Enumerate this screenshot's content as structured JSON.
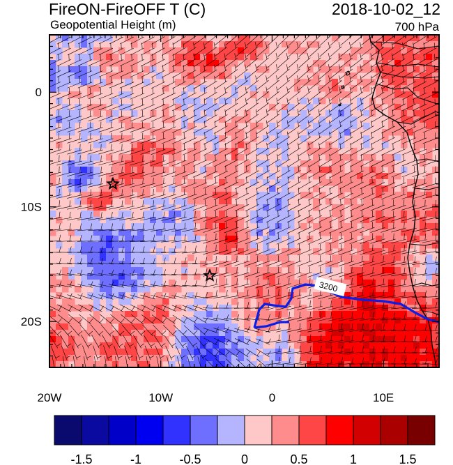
{
  "header": {
    "title": "FireON-FireOFF T (C)",
    "subtitle": "Geopotential Height (m)",
    "datetime": "2018-10-02_12",
    "level": "700 hPa"
  },
  "map": {
    "x_ticks": [
      "20W",
      "10W",
      "0",
      "10E"
    ],
    "y_ticks": [
      "0",
      "10S",
      "20S"
    ],
    "contour_label": "3200",
    "markers": [
      {
        "name": "star-marker-north",
        "lon": -14.3,
        "lat": -8.0
      },
      {
        "name": "star-marker-south",
        "lon": -5.6,
        "lat": -16.0
      }
    ],
    "lon_range": [
      -20,
      15
    ],
    "lat_range": [
      -24,
      5
    ]
  },
  "colorbar": {
    "labels": [
      "-1.5",
      "-1",
      "-0.5",
      "0",
      "0.5",
      "1",
      "1.5"
    ],
    "colors": [
      "#0a0a6e",
      "#0a0aa0",
      "#0000c8",
      "#0000f0",
      "#3232ff",
      "#6e6eff",
      "#b4b4ff",
      "#ffc8c8",
      "#ff8c8c",
      "#ff4646",
      "#ff0000",
      "#d20000",
      "#aa0000",
      "#780000"
    ]
  }
}
